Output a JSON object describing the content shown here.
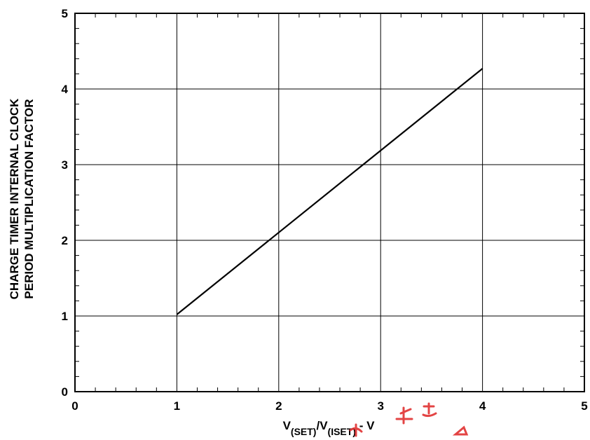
{
  "chart_data": {
    "type": "line",
    "xlabel": {
      "main": "V",
      "sub1": "(SET)",
      "sep": "/V",
      "sub2": "(ISET)",
      "unit": " - V"
    },
    "ylabel": [
      "CHARGE TIMER INTERNAL CLOCK",
      "PERIOD MULTIPLICATION FACTOR"
    ],
    "xlim": [
      0,
      5
    ],
    "ylim": [
      0,
      5
    ],
    "x_ticks": [
      "0",
      "1",
      "2",
      "3",
      "4",
      "5"
    ],
    "y_ticks": [
      "0",
      "1",
      "2",
      "3",
      "4",
      "5"
    ],
    "minor_ticks_per_major": 5,
    "grid": true,
    "series": [
      {
        "x": [
          1,
          4
        ],
        "y": [
          1.02,
          4.27
        ]
      }
    ]
  },
  "watermark": {
    "color": "#e03030"
  }
}
